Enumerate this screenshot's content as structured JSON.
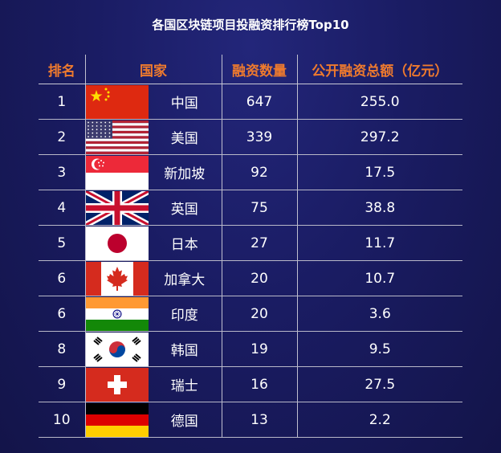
{
  "chart_data": {
    "type": "table",
    "title": "各国区块链项目投融资排行榜Top10",
    "columns": [
      "排名",
      "国家",
      "融资数量",
      "公开融资总额（亿元）"
    ],
    "rows": [
      {
        "rank": "1",
        "flag": "china-flag-icon",
        "country": "中国",
        "count": "647",
        "amount": "255.0"
      },
      {
        "rank": "2",
        "flag": "usa-flag-icon",
        "country": "美国",
        "count": "339",
        "amount": "297.2"
      },
      {
        "rank": "3",
        "flag": "singapore-flag-icon",
        "country": "新加坡",
        "count": "92",
        "amount": "17.5"
      },
      {
        "rank": "4",
        "flag": "uk-flag-icon",
        "country": "英国",
        "count": "75",
        "amount": "38.8"
      },
      {
        "rank": "5",
        "flag": "japan-flag-icon",
        "country": "日本",
        "count": "27",
        "amount": "11.7"
      },
      {
        "rank": "6",
        "flag": "canada-flag-icon",
        "country": "加拿大",
        "count": "20",
        "amount": "10.7"
      },
      {
        "rank": "6",
        "flag": "india-flag-icon",
        "country": "印度",
        "count": "20",
        "amount": "3.6"
      },
      {
        "rank": "8",
        "flag": "south-korea-flag-icon",
        "country": "韩国",
        "count": "19",
        "amount": "9.5"
      },
      {
        "rank": "9",
        "flag": "switzerland-flag-icon",
        "country": "瑞士",
        "count": "16",
        "amount": "27.5"
      },
      {
        "rank": "10",
        "flag": "germany-flag-icon",
        "country": "德国",
        "count": "13",
        "amount": "2.2"
      }
    ]
  }
}
